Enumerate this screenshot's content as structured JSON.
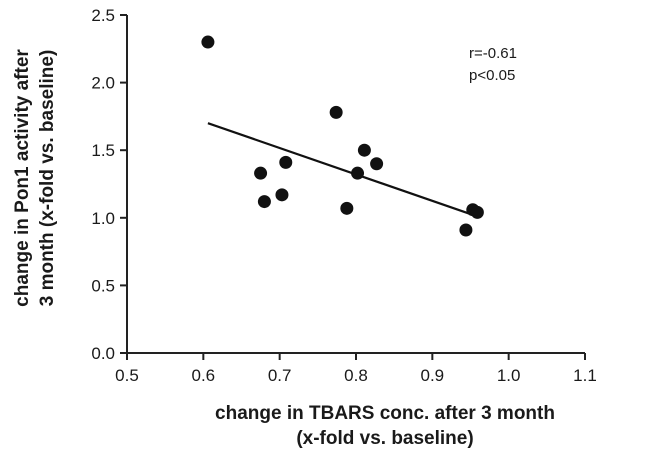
{
  "chart_data": {
    "type": "scatter",
    "xlabel": [
      "change in TBARS conc. after 3 month",
      "(x-fold vs. baseline)"
    ],
    "ylabel": [
      "change in Pon1 activity after",
      "3 month (x-fold vs. baseline)"
    ],
    "xlim": [
      0.5,
      1.1
    ],
    "ylim": [
      0.0,
      2.5
    ],
    "x_ticks": [
      "0.5",
      "0.6",
      "0.7",
      "0.8",
      "0.9",
      "1.0",
      "1.1"
    ],
    "y_ticks": [
      "0.0",
      "0.5",
      "1.0",
      "1.5",
      "2.0",
      "2.5"
    ],
    "grid": false,
    "series": [
      {
        "points": [
          {
            "x": 0.606,
            "y": 2.3
          },
          {
            "x": 0.675,
            "y": 1.33
          },
          {
            "x": 0.68,
            "y": 1.12
          },
          {
            "x": 0.703,
            "y": 1.17
          },
          {
            "x": 0.708,
            "y": 1.41
          },
          {
            "x": 0.774,
            "y": 1.78
          },
          {
            "x": 0.788,
            "y": 1.07
          },
          {
            "x": 0.802,
            "y": 1.33
          },
          {
            "x": 0.811,
            "y": 1.5
          },
          {
            "x": 0.827,
            "y": 1.4
          },
          {
            "x": 0.944,
            "y": 0.91
          },
          {
            "x": 0.953,
            "y": 1.06
          },
          {
            "x": 0.959,
            "y": 1.04
          }
        ]
      }
    ],
    "regression_line": {
      "x": [
        0.606,
        0.959
      ],
      "y": [
        1.7,
        1.01
      ]
    },
    "annotations": [
      "r=-0.61",
      "p<0.05"
    ],
    "colors": {
      "marker": "#111111",
      "line": "#111111",
      "axis": "#222222"
    }
  }
}
